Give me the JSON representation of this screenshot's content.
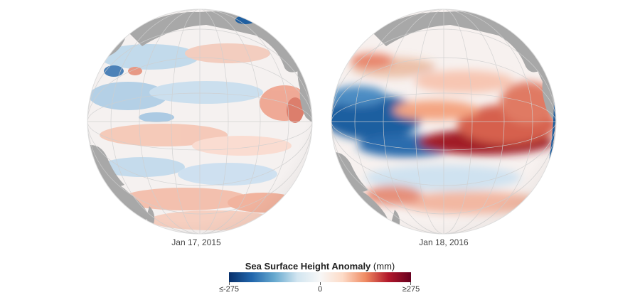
{
  "panels": [
    {
      "caption": "Jan 17, 2015",
      "year": 2015
    },
    {
      "caption": "Jan 18, 2016",
      "year": 2016
    }
  ],
  "legend": {
    "title": "Sea Surface Height Anomaly",
    "unit": "(mm)",
    "min_label": "≤-275",
    "mid_label": "0",
    "max_label": "≥275",
    "colors": [
      "#08306b",
      "#2166ac",
      "#67a9cf",
      "#d1e5f0",
      "#f7f7f7",
      "#fddbc7",
      "#ef8a62",
      "#b2182b",
      "#67001f"
    ]
  },
  "colors": {
    "land": "#a8a8a8",
    "graticule": "#c9c9c9",
    "ocean_neutral": "#f6f3f2"
  }
}
